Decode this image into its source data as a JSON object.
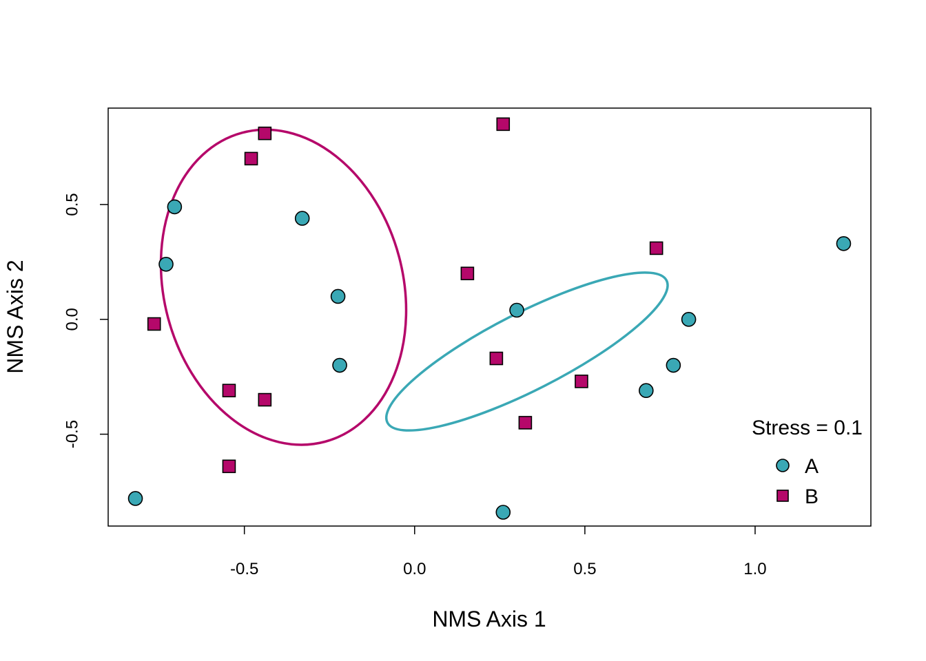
{
  "chart_data": {
    "type": "scatter",
    "title": "",
    "xlabel": "NMS Axis 1",
    "ylabel": "NMS Axis 2",
    "xlim": [
      -0.9,
      1.34
    ],
    "ylim": [
      -0.9,
      0.92
    ],
    "x_ticks": [
      -0.5,
      0.0,
      0.5,
      1.0
    ],
    "x_tick_labels": [
      "-0.5",
      "0.0",
      "0.5",
      "1.0"
    ],
    "y_ticks": [
      -0.5,
      0.0,
      0.5
    ],
    "y_tick_labels": [
      "-0.5",
      "0.0",
      "0.5"
    ],
    "grid": false,
    "legend_position": "bottom-right",
    "annotation": "Stress = 0.1",
    "series": [
      {
        "name": "A",
        "marker": "circle",
        "color": "#3aa8b5",
        "points": [
          {
            "x": -0.705,
            "y": 0.49
          },
          {
            "x": -0.73,
            "y": 0.24
          },
          {
            "x": -0.33,
            "y": 0.44
          },
          {
            "x": -0.225,
            "y": 0.1
          },
          {
            "x": -0.22,
            "y": -0.2
          },
          {
            "x": -0.82,
            "y": -0.78
          },
          {
            "x": 0.3,
            "y": 0.04
          },
          {
            "x": 0.805,
            "y": 0.0
          },
          {
            "x": 0.76,
            "y": -0.2
          },
          {
            "x": 0.68,
            "y": -0.31
          },
          {
            "x": 0.26,
            "y": -0.84
          },
          {
            "x": 1.26,
            "y": 0.33
          }
        ],
        "ellipse": {
          "cx": 0.33,
          "cy": -0.14,
          "rx": 0.46,
          "ry": 0.168,
          "angle_deg": 27
        }
      },
      {
        "name": "B",
        "marker": "square",
        "color": "#b5086a",
        "points": [
          {
            "x": -0.44,
            "y": 0.81
          },
          {
            "x": -0.48,
            "y": 0.7
          },
          {
            "x": -0.765,
            "y": -0.02
          },
          {
            "x": -0.545,
            "y": -0.31
          },
          {
            "x": -0.44,
            "y": -0.35
          },
          {
            "x": -0.545,
            "y": -0.64
          },
          {
            "x": 0.26,
            "y": 0.85
          },
          {
            "x": 0.155,
            "y": 0.2
          },
          {
            "x": 0.24,
            "y": -0.17
          },
          {
            "x": 0.49,
            "y": -0.27
          },
          {
            "x": 0.325,
            "y": -0.45
          },
          {
            "x": 0.71,
            "y": 0.31
          }
        ],
        "ellipse": {
          "cx": -0.385,
          "cy": 0.14,
          "rx": 0.47,
          "ry": 0.52,
          "angle_deg": -75
        }
      }
    ]
  }
}
